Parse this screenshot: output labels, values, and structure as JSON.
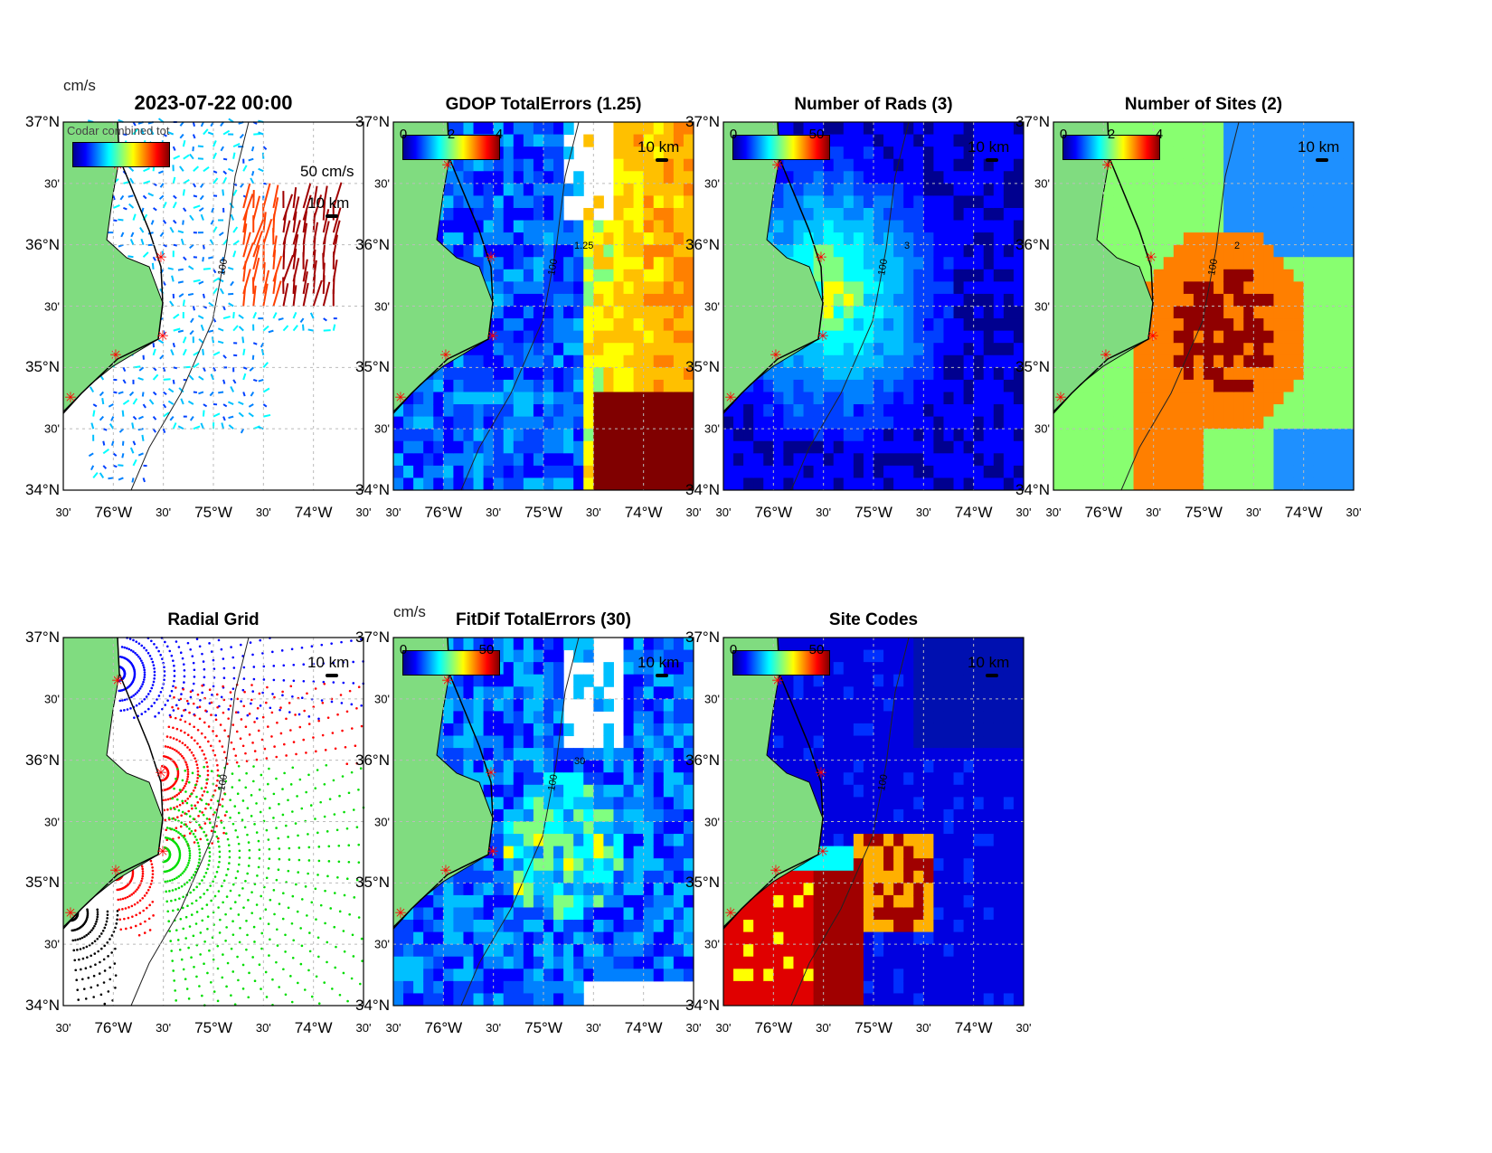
{
  "axes": {
    "lat_labels": [
      "37°N",
      "30'",
      "36°N",
      "30'",
      "35°N",
      "30'",
      "34°N"
    ],
    "lon_labels": [
      "30'",
      "76°W",
      "30'",
      "75°W",
      "30'",
      "74°W",
      "30'"
    ],
    "lon_range": [
      -76.5,
      -73.5
    ],
    "lat_range": [
      34,
      37
    ],
    "scale_label": "10 km",
    "isobath_label": "100"
  },
  "panels": [
    {
      "id": "currents",
      "title": "2023-07-22 00:00",
      "colorbar": true,
      "cb_unit": "cm/s",
      "cb_ticks": [],
      "vector_scale": "50 cm/s",
      "scheme": "vectors",
      "overlay_text": "Codar combined tot"
    },
    {
      "id": "gdop",
      "title": "GDOP TotalErrors (1.25)",
      "colorbar": true,
      "cb_unit": "",
      "cb_ticks": [
        "0",
        "2",
        "4"
      ],
      "scheme": "gdop",
      "contour_label": "1.25"
    },
    {
      "id": "nrads",
      "title": "Number of Rads (3)",
      "colorbar": true,
      "cb_unit": "",
      "cb_ticks": [
        "0",
        "50"
      ],
      "scheme": "nrads",
      "contour_label": "3"
    },
    {
      "id": "nsites",
      "title": "Number of Sites (2)",
      "colorbar": true,
      "cb_unit": "",
      "cb_ticks": [
        "0",
        "2",
        "4"
      ],
      "scheme": "nsites",
      "contour_label": "2"
    },
    {
      "id": "radialgrid",
      "title": "Radial Grid",
      "colorbar": false,
      "cb_unit": "",
      "cb_ticks": [],
      "scheme": "radial"
    },
    {
      "id": "fitdif",
      "title": "FitDif TotalErrors (30)",
      "colorbar": true,
      "cb_unit": "cm/s",
      "cb_ticks": [
        "0",
        "50"
      ],
      "scheme": "fitdif",
      "contour_label": "30"
    },
    {
      "id": "sitecodes",
      "title": "Site Codes",
      "colorbar": true,
      "cb_unit": "",
      "cb_ticks": [
        "0",
        "50"
      ],
      "scheme": "sitecodes"
    }
  ],
  "colors": {
    "land": "#80dc80",
    "site_marker": "#ff0000",
    "grid": "#bbbbbb"
  }
}
